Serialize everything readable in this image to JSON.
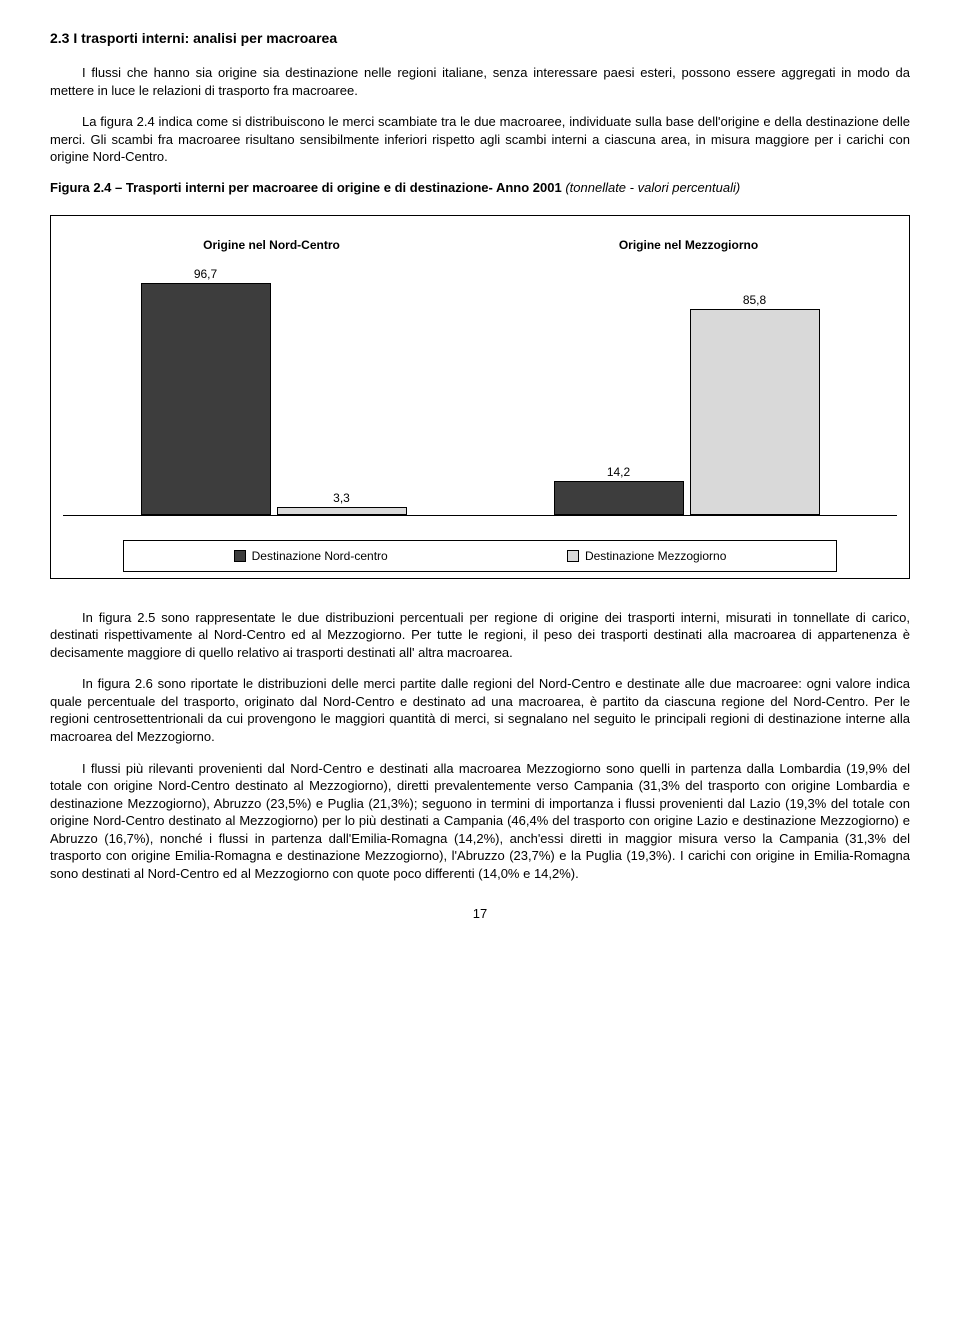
{
  "heading": "2.3  I trasporti interni: analisi per macroarea",
  "para1": "I flussi che hanno sia origine sia destinazione nelle regioni italiane, senza interessare paesi esteri, possono essere aggregati in modo da mettere in luce le relazioni di trasporto fra macroaree.",
  "para2": "La figura 2.4 indica come si distribuiscono le merci scambiate tra le due macroaree, individuate sulla base dell'origine e della destinazione delle merci. Gli scambi fra macroaree risultano sensibilmente inferiori rispetto agli scambi interni a ciascuna area, in misura maggiore per i carichi con origine Nord-Centro.",
  "figcap_bold": "Figura 2.4 – Trasporti interni per macroaree di origine e di destinazione- Anno 2001 ",
  "figcap_italic": "(tonnellate - valori percentuali)",
  "chart": {
    "title_left": "Origine nel Nord-Centro",
    "title_right": "Origine nel Mezzogiorno",
    "bars": {
      "left1": {
        "label": "96,7",
        "value": 96.7,
        "color": "dark"
      },
      "left2": {
        "label": "3,3",
        "value": 3.3,
        "color": "light"
      },
      "right1": {
        "label": "14,2",
        "value": 14.2,
        "color": "dark"
      },
      "right2": {
        "label": "85,8",
        "value": 85.8,
        "color": "light"
      }
    },
    "max": 100,
    "legend": {
      "item1": "Destinazione Nord-centro",
      "item2": "Destinazione Mezzogiorno"
    },
    "colors": {
      "dark": "#3d3d3d",
      "light": "#d9d9d9",
      "border": "#000000"
    }
  },
  "para3": "In figura 2.5 sono rappresentate le due distribuzioni percentuali per regione di origine dei trasporti interni, misurati in tonnellate di carico, destinati rispettivamente al Nord-Centro ed al Mezzogiorno. Per tutte le regioni, il peso dei trasporti destinati alla macroarea di appartenenza è decisamente maggiore di quello relativo ai trasporti destinati all' altra macroarea.",
  "para4": "In figura 2.6 sono riportate le distribuzioni delle merci partite dalle regioni del Nord-Centro e destinate alle due macroaree: ogni valore indica quale percentuale del trasporto, originato dal Nord-Centro e destinato ad una macroarea, è partito da ciascuna regione del Nord-Centro. Per le regioni centrosettentrionali da cui provengono le maggiori quantità di merci, si segnalano nel seguito le principali regioni di destinazione interne alla macroarea del Mezzogiorno.",
  "para5": "I flussi più rilevanti provenienti dal Nord-Centro e destinati alla macroarea Mezzogiorno sono quelli in partenza dalla Lombardia (19,9% del totale con origine Nord-Centro destinato al Mezzogiorno), diretti prevalentemente verso Campania (31,3% del trasporto con origine Lombardia e destinazione Mezzogiorno), Abruzzo (23,5%) e Puglia (21,3%); seguono in termini di importanza i flussi provenienti dal Lazio (19,3% del totale con origine Nord-Centro destinato al Mezzogiorno) per lo più destinati a Campania (46,4% del trasporto con origine Lazio e destinazione Mezzogiorno) e Abruzzo (16,7%), nonché i flussi in partenza dall'Emilia-Romagna (14,2%), anch'essi diretti in maggior misura verso la Campania (31,3% del trasporto con origine Emilia-Romagna e destinazione Mezzogiorno), l'Abruzzo (23,7%) e la Puglia (19,3%). I carichi con origine in Emilia-Romagna sono destinati al Nord-Centro ed al Mezzogiorno con quote poco differenti (14,0% e 14,2%).",
  "page_number": "17"
}
